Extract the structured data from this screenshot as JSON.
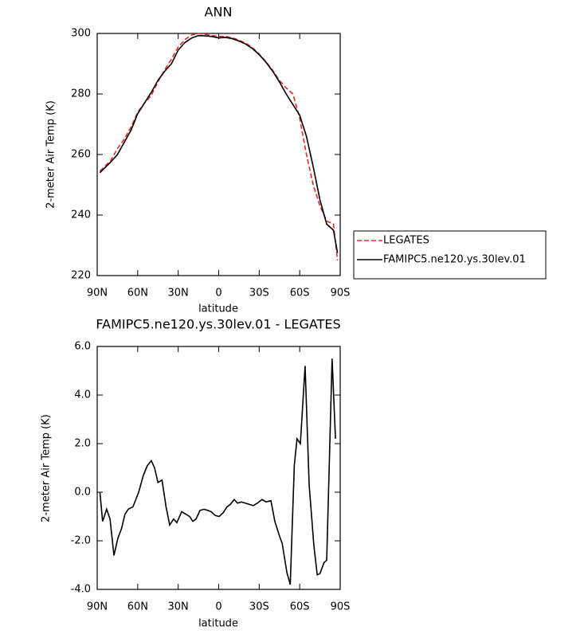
{
  "chart_data": [
    {
      "type": "line",
      "title": "ANN",
      "x_label": "latitude",
      "y_label": "2-meter Air Temp (K)",
      "x": [
        88,
        80,
        75,
        70,
        65,
        60,
        55,
        50,
        45,
        40,
        35,
        30,
        25,
        20,
        15,
        10,
        5,
        0,
        -5,
        -10,
        -15,
        -20,
        -25,
        -30,
        -35,
        -40,
        -45,
        -50,
        -55,
        -60,
        -65,
        -70,
        -75,
        -80,
        -85,
        -88
      ],
      "series": [
        {
          "name": "LEGATES",
          "color": "#e8282a",
          "dash": true,
          "values": [
            254.5,
            258,
            262,
            265,
            269,
            274,
            277,
            279.5,
            284,
            288,
            291.5,
            295.5,
            298,
            299.5,
            300,
            299.7,
            299.3,
            299,
            299,
            298.6,
            297.8,
            296.8,
            295.3,
            293.2,
            290.7,
            287.8,
            284.5,
            282,
            280,
            272,
            260,
            250,
            243,
            238,
            237,
            225
          ]
        },
        {
          "name": "FAMIPC5.ne120.ys.30lev.01",
          "color": "#000000",
          "dash": false,
          "values": [
            254,
            257.5,
            260,
            264,
            268,
            273.5,
            277,
            280.5,
            284.5,
            287.5,
            290,
            294.5,
            297,
            298.5,
            299.3,
            299.2,
            299,
            298.5,
            298.7,
            298.3,
            297.5,
            296.5,
            295,
            293,
            290.5,
            287.5,
            284,
            280,
            276.5,
            273,
            266,
            256,
            245,
            237,
            235,
            227.5
          ]
        }
      ],
      "xlim": [
        90,
        -90
      ],
      "xticks": [
        {
          "value": 90,
          "label": "90N"
        },
        {
          "value": 60,
          "label": "60N"
        },
        {
          "value": 30,
          "label": "30N"
        },
        0,
        {
          "value": -30,
          "label": "30S"
        },
        {
          "value": -60,
          "label": "60S"
        },
        {
          "value": -90,
          "label": "90S"
        }
      ],
      "ylim": [
        220,
        300
      ],
      "yticks": [
        220,
        240,
        260,
        280,
        300
      ],
      "legend": "right"
    },
    {
      "type": "line",
      "title": "FAMIPC5.ne120.ys.30lev.01 - LEGATES",
      "x_label": "latitude",
      "y_label": "2-meter Air Temp (K)",
      "x": [
        88,
        86,
        83,
        80.5,
        77.6,
        74.7,
        72,
        69.4,
        67,
        63.5,
        59.3,
        55.8,
        52.8,
        49.9,
        47.5,
        45,
        42,
        39,
        36.3,
        33.4,
        31,
        27.4,
        24.5,
        21.5,
        19.2,
        16.8,
        13.9,
        10.9,
        8,
        5.6,
        2.7,
        -0.3,
        -3.2,
        -6.2,
        -8.6,
        -11.5,
        -13.9,
        -16.8,
        -19.8,
        -22.7,
        -25.7,
        -28.6,
        -32.2,
        -35.1,
        -38.7,
        -41.6,
        -45,
        -47,
        -50.5,
        -53,
        -56,
        -58,
        -60.5,
        -64,
        -67,
        -70.5,
        -73,
        -75,
        -78,
        -80,
        -84,
        -86.5
      ],
      "values": [
        0.0,
        -1.2,
        -0.7,
        -1.1,
        -2.6,
        -1.9,
        -1.5,
        -0.9,
        -0.7,
        -0.6,
        0.0,
        0.7,
        1.1,
        1.3,
        1.0,
        0.4,
        0.5,
        -0.6,
        -1.35,
        -1.1,
        -1.25,
        -0.8,
        -0.9,
        -1.0,
        -1.2,
        -1.1,
        -0.75,
        -0.7,
        -0.75,
        -0.8,
        -0.95,
        -1.0,
        -0.85,
        -0.6,
        -0.5,
        -0.3,
        -0.45,
        -0.4,
        -0.45,
        -0.5,
        -0.55,
        -0.45,
        -0.3,
        -0.4,
        -0.35,
        -1.2,
        -1.8,
        -2.1,
        -3.3,
        -3.8,
        1.1,
        2.2,
        2.0,
        5.2,
        0.3,
        -2.2,
        -3.4,
        -3.35,
        -2.9,
        -2.8,
        5.5,
        2.2
      ],
      "color": "#000000",
      "xlim": [
        90,
        -90
      ],
      "xticks": [
        {
          "value": 90,
          "label": "90N"
        },
        {
          "value": 60,
          "label": "60N"
        },
        {
          "value": 30,
          "label": "30N"
        },
        0,
        {
          "value": -30,
          "label": "30S"
        },
        {
          "value": -60,
          "label": "60S"
        },
        {
          "value": -90,
          "label": "90S"
        }
      ],
      "ylim": [
        -4,
        6
      ],
      "yticks": [
        {
          "value": -4,
          "label": "-4.0"
        },
        {
          "value": -2,
          "label": "-2.0"
        },
        {
          "value": 0,
          "label": "0.0"
        },
        {
          "value": 2,
          "label": "2.0"
        },
        {
          "value": 4,
          "label": "4.0"
        },
        {
          "value": 6,
          "label": "6.0"
        }
      ]
    }
  ]
}
